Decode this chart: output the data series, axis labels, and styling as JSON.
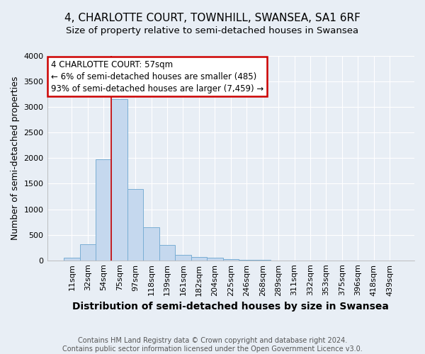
{
  "title1": "4, CHARLOTTE COURT, TOWNHILL, SWANSEA, SA1 6RF",
  "title2": "Size of property relative to semi-detached houses in Swansea",
  "xlabel": "Distribution of semi-detached houses by size in Swansea",
  "ylabel": "Number of semi-detached properties",
  "footnote": "Contains HM Land Registry data © Crown copyright and database right 2024.\nContains public sector information licensed under the Open Government Licence v3.0.",
  "bar_labels": [
    "11sqm",
    "32sqm",
    "54sqm",
    "75sqm",
    "97sqm",
    "118sqm",
    "139sqm",
    "161sqm",
    "182sqm",
    "204sqm",
    "225sqm",
    "246sqm",
    "268sqm",
    "289sqm",
    "311sqm",
    "332sqm",
    "353sqm",
    "375sqm",
    "396sqm",
    "418sqm",
    "439sqm"
  ],
  "bar_values": [
    55,
    315,
    1980,
    3160,
    1400,
    640,
    300,
    110,
    65,
    50,
    25,
    10,
    5,
    2,
    1,
    0,
    0,
    0,
    0,
    0,
    0
  ],
  "bar_color": "#c5d8ee",
  "bar_edge_color": "#7aaed4",
  "vline_x_index": 2,
  "vline_color": "#cc0000",
  "annotation_text": "4 CHARLOTTE COURT: 57sqm\n← 6% of semi-detached houses are smaller (485)\n93% of semi-detached houses are larger (7,459) →",
  "annotation_box_edgecolor": "#cc0000",
  "annotation_bg": "#ffffff",
  "ylim": [
    0,
    4000
  ],
  "yticks": [
    0,
    500,
    1000,
    1500,
    2000,
    2500,
    3000,
    3500,
    4000
  ],
  "background_color": "#e8eef5",
  "grid_color": "#ffffff",
  "title1_fontsize": 11,
  "title2_fontsize": 9.5,
  "xlabel_fontsize": 10,
  "ylabel_fontsize": 9,
  "tick_fontsize": 8,
  "annot_fontsize": 8.5,
  "footnote_fontsize": 7
}
